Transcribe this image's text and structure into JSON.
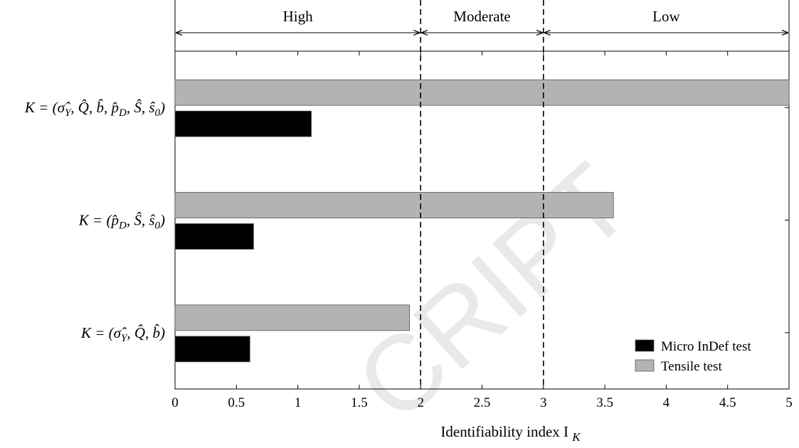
{
  "chart_data": {
    "type": "bar",
    "orientation": "horizontal",
    "categories": [
      "K = (σ̂Y, Q̂, b̂, p̂D, Ŝ, ŝ0)",
      "K = (p̂D, Ŝ, ŝ0)",
      "K = (σ̂Y, Q̂, b̂)"
    ],
    "series": [
      {
        "name": "Tensile test",
        "color": "#b3b3b3",
        "values": [
          5.0,
          3.57,
          1.91
        ]
      },
      {
        "name": "Micro InDef test",
        "color": "#000000",
        "values": [
          1.11,
          0.64,
          0.61
        ]
      }
    ],
    "xlabel": "Identifiability index I",
    "xlabel_subscript": "K",
    "xlim": [
      0,
      5
    ],
    "xticks": [
      "0",
      "0.5",
      "1",
      "1.5",
      "2",
      "2.5",
      "3",
      "3.5",
      "4",
      "4.5",
      "5"
    ],
    "thresholds": [
      2,
      3
    ],
    "zones": [
      {
        "label": "High",
        "from": 0,
        "to": 2
      },
      {
        "label": "Moderate",
        "from": 2,
        "to": 3
      },
      {
        "label": "Low",
        "from": 3,
        "to": 5
      }
    ],
    "legend_position": "bottom-right",
    "grid": false
  },
  "ylabels": [
    {
      "prefix": "K = (",
      "terms": [
        [
          "σ̂",
          "Y"
        ],
        [
          "Q̂",
          ""
        ],
        [
          "b̂",
          ""
        ],
        [
          "p̂",
          "D"
        ],
        [
          "Ŝ",
          ""
        ],
        [
          "ŝ",
          "0"
        ]
      ],
      "suffix": ")"
    },
    {
      "prefix": "K = (",
      "terms": [
        [
          "p̂",
          "D"
        ],
        [
          "Ŝ",
          ""
        ],
        [
          "ŝ",
          "0"
        ]
      ],
      "suffix": ")"
    },
    {
      "prefix": "K = (",
      "terms": [
        [
          "σ̂",
          "Y"
        ],
        [
          "Q̂",
          ""
        ],
        [
          "b̂",
          ""
        ]
      ],
      "suffix": ")"
    }
  ],
  "watermark": "CRIPT"
}
